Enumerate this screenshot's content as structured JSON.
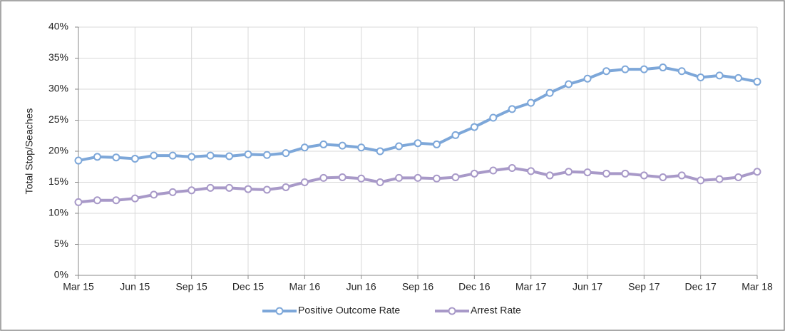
{
  "chart_data": {
    "type": "line",
    "y_label": "Total Stop/Seaches",
    "categories": [
      "Mar 15",
      null,
      null,
      "Jun 15",
      null,
      null,
      "Sep 15",
      null,
      null,
      "Dec 15",
      null,
      null,
      "Mar 16",
      null,
      null,
      "Jun 16",
      null,
      null,
      "Sep 16",
      null,
      null,
      "Dec 16",
      null,
      null,
      "Mar 17",
      null,
      null,
      "Jun 17",
      null,
      null,
      "Sep 17",
      null,
      null,
      "Dec 17",
      null,
      null,
      "Mar 18"
    ],
    "series": [
      {
        "name": "Positive Outcome Rate",
        "color": "#7da7d9",
        "values": [
          18.5,
          19.1,
          19.0,
          18.8,
          19.3,
          19.3,
          19.1,
          19.3,
          19.2,
          19.5,
          19.4,
          19.7,
          20.6,
          21.1,
          20.9,
          20.6,
          20.0,
          20.8,
          21.3,
          21.1,
          22.6,
          23.9,
          25.4,
          26.8,
          27.8,
          29.4,
          30.8,
          31.7,
          32.9,
          33.2,
          33.2,
          33.5,
          32.9,
          31.9,
          32.2,
          31.8,
          31.2
        ]
      },
      {
        "name": "Arrest Rate",
        "color": "#a899c8",
        "values": [
          11.8,
          12.1,
          12.1,
          12.4,
          13.0,
          13.4,
          13.7,
          14.1,
          14.1,
          13.9,
          13.8,
          14.2,
          15.0,
          15.7,
          15.8,
          15.6,
          15.0,
          15.7,
          15.7,
          15.6,
          15.8,
          16.4,
          16.9,
          17.3,
          16.8,
          16.1,
          16.7,
          16.6,
          16.4,
          16.4,
          16.1,
          15.8,
          16.1,
          15.3,
          15.5,
          15.8,
          16.7
        ]
      }
    ],
    "ylim": [
      0,
      40
    ],
    "yticks": [
      {
        "value": 0,
        "label": "0%"
      },
      {
        "value": 5,
        "label": "5%"
      },
      {
        "value": 10,
        "label": "10%"
      },
      {
        "value": 15,
        "label": "15%"
      },
      {
        "value": 20,
        "label": "20%"
      },
      {
        "value": 25,
        "label": "25%"
      },
      {
        "value": 30,
        "label": "30%"
      },
      {
        "value": 35,
        "label": "35%"
      },
      {
        "value": 40,
        "label": "40%"
      }
    ],
    "grid": true,
    "legend": "bottom"
  }
}
